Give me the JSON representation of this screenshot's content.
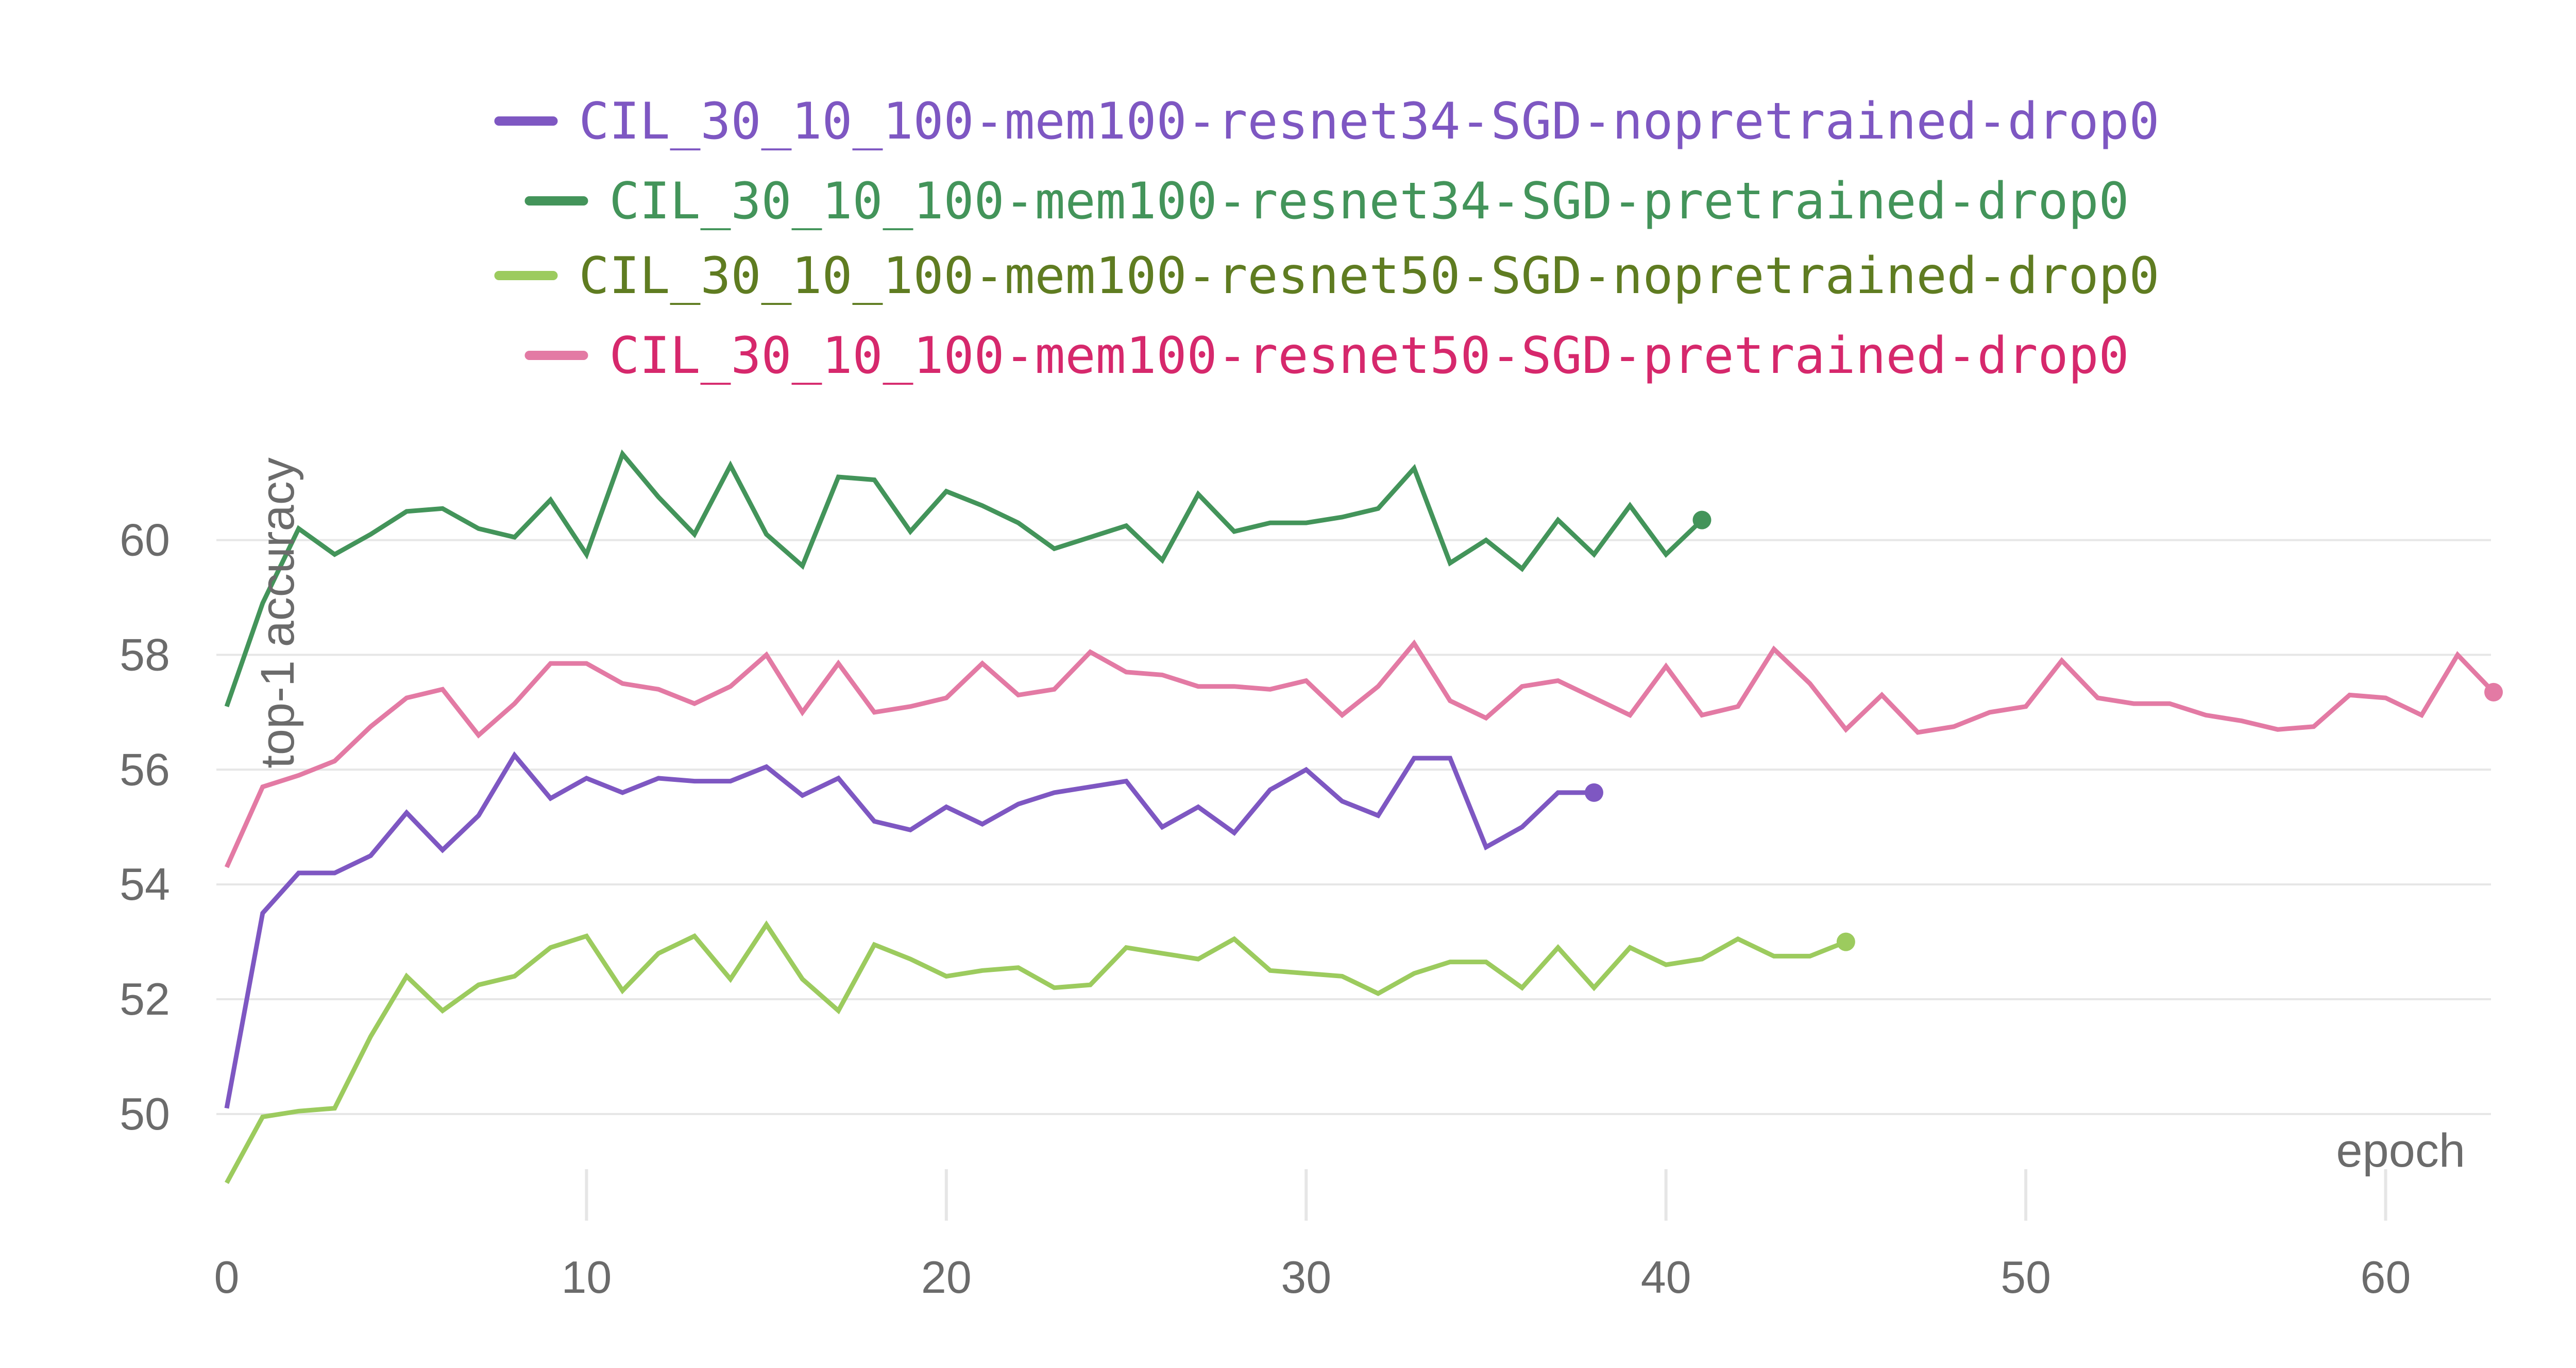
{
  "chart_data": {
    "type": "line",
    "xlabel": "epoch",
    "ylabel": "top-1 accuracy",
    "xlim": [
      0,
      63
    ],
    "ylim": [
      48.5,
      62.5
    ],
    "x_ticks": [
      0,
      10,
      20,
      30,
      40,
      50,
      60
    ],
    "y_ticks": [
      50,
      52,
      54,
      56,
      58,
      60
    ],
    "grid": "horizontal",
    "legend_position": "top-center",
    "series": [
      {
        "name": "CIL_30_10_100-mem100-resnet34-SGD-nopretrained-drop0",
        "color": "#7e57c2",
        "text_color": "#7e57c2",
        "values": [
          50.1,
          53.5,
          54.2,
          54.2,
          54.5,
          55.25,
          54.6,
          55.2,
          56.25,
          55.5,
          55.85,
          55.6,
          55.85,
          55.8,
          55.8,
          56.05,
          55.55,
          55.85,
          55.1,
          54.95,
          55.35,
          55.05,
          55.4,
          55.6,
          55.7,
          55.8,
          55.0,
          55.35,
          54.9,
          55.65,
          56.0,
          55.45,
          55.2,
          56.2,
          56.2,
          54.65,
          55.0,
          55.6,
          55.6
        ]
      },
      {
        "name": "CIL_30_10_100-mem100-resnet34-SGD-pretrained-drop0",
        "color": "#43945a",
        "text_color": "#43945a",
        "values": [
          57.1,
          58.9,
          60.2,
          59.75,
          60.1,
          60.5,
          60.55,
          60.2,
          60.05,
          60.7,
          59.75,
          61.5,
          60.75,
          60.1,
          61.3,
          60.1,
          59.55,
          61.1,
          61.05,
          60.15,
          60.85,
          60.6,
          60.3,
          59.85,
          60.05,
          60.25,
          59.65,
          60.8,
          60.15,
          60.3,
          60.3,
          60.4,
          60.55,
          61.25,
          59.6,
          60.0,
          59.5,
          60.35,
          59.75,
          60.6,
          59.75,
          60.35
        ]
      },
      {
        "name": "CIL_30_10_100-mem100-resnet50-SGD-nopretrained-drop0",
        "color": "#9ccb5e",
        "text_color": "#5f7c21",
        "values": [
          48.8,
          49.95,
          50.05,
          50.1,
          51.35,
          52.4,
          51.8,
          52.25,
          52.4,
          52.9,
          53.1,
          52.15,
          52.8,
          53.1,
          52.35,
          53.3,
          52.35,
          51.8,
          52.95,
          52.7,
          52.4,
          52.5,
          52.55,
          52.2,
          52.25,
          52.9,
          52.8,
          52.7,
          53.05,
          52.5,
          52.45,
          52.4,
          52.1,
          52.45,
          52.65,
          52.65,
          52.2,
          52.9,
          52.2,
          52.9,
          52.6,
          52.7,
          53.05,
          52.75,
          52.75,
          53.0
        ]
      },
      {
        "name": "CIL_30_10_100-mem100-resnet50-SGD-pretrained-drop0",
        "color": "#e37aa4",
        "text_color": "#d6286c",
        "values": [
          54.3,
          55.7,
          55.9,
          56.15,
          56.75,
          57.25,
          57.4,
          56.6,
          57.15,
          57.85,
          57.85,
          57.5,
          57.4,
          57.15,
          57.45,
          58.0,
          57.0,
          57.85,
          57.0,
          57.1,
          57.25,
          57.85,
          57.3,
          57.4,
          58.05,
          57.7,
          57.65,
          57.45,
          57.45,
          57.4,
          57.55,
          56.95,
          57.45,
          58.2,
          57.2,
          56.9,
          57.45,
          57.55,
          57.25,
          56.95,
          57.8,
          56.95,
          57.1,
          58.1,
          57.5,
          56.7,
          57.3,
          56.65,
          56.75,
          57.0,
          57.1,
          57.9,
          57.25,
          57.15,
          57.15,
          56.95,
          56.85,
          56.7,
          56.75,
          57.3,
          57.25,
          56.95,
          58.0,
          57.35
        ]
      }
    ]
  }
}
